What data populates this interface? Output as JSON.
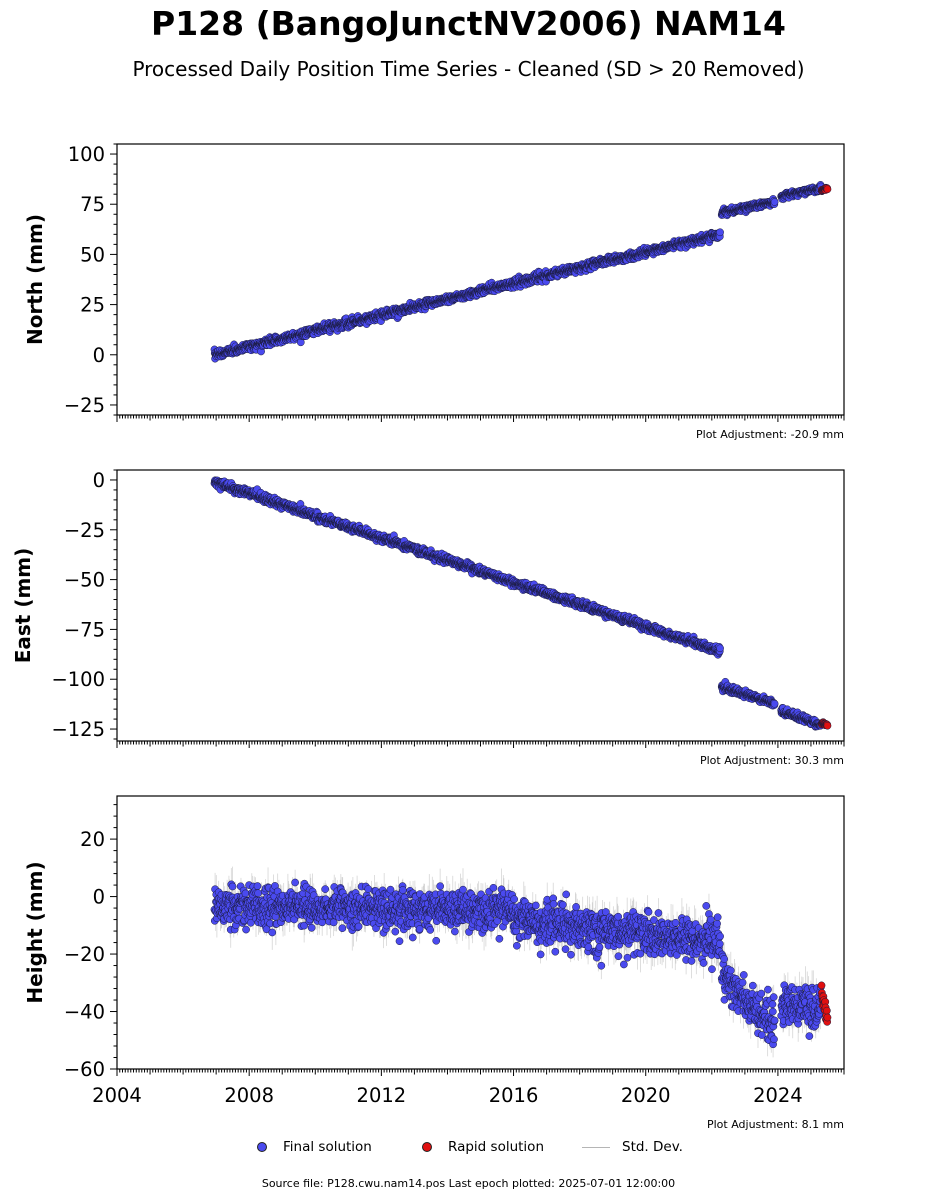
{
  "title": "P128 (BangoJunctNV2006) NAM14",
  "subtitle": "Processed Daily Position Time Series - Cleaned (SD > 20 Removed)",
  "source_note": "Source file: P128.cwu.nam14.pos  Last epoch plotted: 2025-07-01 12:00:00",
  "legend": {
    "final": "Final solution",
    "rapid": "Rapid solution",
    "stddev": "Std. Dev."
  },
  "colors": {
    "final": "#4a4aef",
    "rapid": "#e01010",
    "stddev": "#b5b5b5",
    "edge": "#1a1a3a"
  },
  "chart_data": [
    {
      "type": "scatter",
      "ylabel": "North (mm)",
      "xlim": [
        2004.0,
        2026.0
      ],
      "ylim": [
        -30,
        105
      ],
      "yticks": [
        -25,
        0,
        25,
        50,
        75,
        100
      ],
      "adjustment": "Plot Adjustment: -20.9 mm",
      "xticks": [],
      "series": [
        {
          "role": "final",
          "segments": [
            {
              "x": [
                2006.95,
                2022.25
              ],
              "y": [
                0,
                60
              ],
              "noise": 1.6,
              "stddev": 1.5
            },
            {
              "x": [
                2022.3,
                2023.9
              ],
              "y": [
                71,
                76
              ],
              "noise": 1.4,
              "stddev": 1.5
            },
            {
              "x": [
                2024.1,
                2025.3
              ],
              "y": [
                79,
                83
              ],
              "noise": 1.2,
              "stddev": 1.5
            }
          ]
        },
        {
          "role": "rapid",
          "segments": [
            {
              "x": [
                2025.32,
                2025.5
              ],
              "y": [
                82,
                83
              ],
              "noise": 0.5,
              "stddev": 0
            }
          ]
        }
      ]
    },
    {
      "type": "scatter",
      "ylabel": "East (mm)",
      "xlim": [
        2004.0,
        2026.0
      ],
      "ylim": [
        -131,
        5
      ],
      "yticks": [
        -125,
        -100,
        -75,
        -50,
        -25,
        0
      ],
      "adjustment": "Plot Adjustment: 30.3 mm",
      "xticks": [],
      "series": [
        {
          "role": "final",
          "segments": [
            {
              "x": [
                2006.95,
                2022.25
              ],
              "y": [
                -1,
                -86
              ],
              "noise": 1.5,
              "stddev": 1.5
            },
            {
              "x": [
                2022.3,
                2023.9
              ],
              "y": [
                -104,
                -112
              ],
              "noise": 1.5,
              "stddev": 1.5
            },
            {
              "x": [
                2024.1,
                2025.3
              ],
              "y": [
                -116,
                -123
              ],
              "noise": 1.3,
              "stddev": 1.5
            }
          ]
        },
        {
          "role": "rapid",
          "segments": [
            {
              "x": [
                2025.32,
                2025.5
              ],
              "y": [
                -122,
                -123
              ],
              "noise": 0.6,
              "stddev": 0
            }
          ]
        }
      ]
    },
    {
      "type": "scatter",
      "ylabel": "Height (mm)",
      "xlim": [
        2004.0,
        2026.0
      ],
      "ylim": [
        -60,
        35
      ],
      "yticks": [
        -60,
        -40,
        -20,
        0,
        20
      ],
      "adjustment": "Plot Adjustment: 8.1 mm",
      "xticks": [
        "2004",
        "2008",
        "2012",
        "2016",
        "2020",
        "2024"
      ],
      "series": [
        {
          "role": "final",
          "segments": [
            {
              "x": [
                2006.95,
                2016.0
              ],
              "y": [
                -3,
                -5
              ],
              "noise": 5.5,
              "stddev": 5
            },
            {
              "x": [
                2016.0,
                2022.25
              ],
              "y": [
                -8,
                -16
              ],
              "noise": 6.0,
              "stddev": 5
            },
            {
              "x": [
                2022.3,
                2023.9
              ],
              "y": [
                -28,
                -45
              ],
              "noise": 6.0,
              "stddev": 5
            },
            {
              "x": [
                2024.1,
                2025.3
              ],
              "y": [
                -38,
                -38
              ],
              "noise": 6.0,
              "stddev": 5
            }
          ]
        },
        {
          "role": "rapid",
          "segments": [
            {
              "x": [
                2025.32,
                2025.5
              ],
              "y": [
                -33,
                -43
              ],
              "noise": 2.5,
              "stddev": 0
            }
          ]
        }
      ]
    }
  ]
}
